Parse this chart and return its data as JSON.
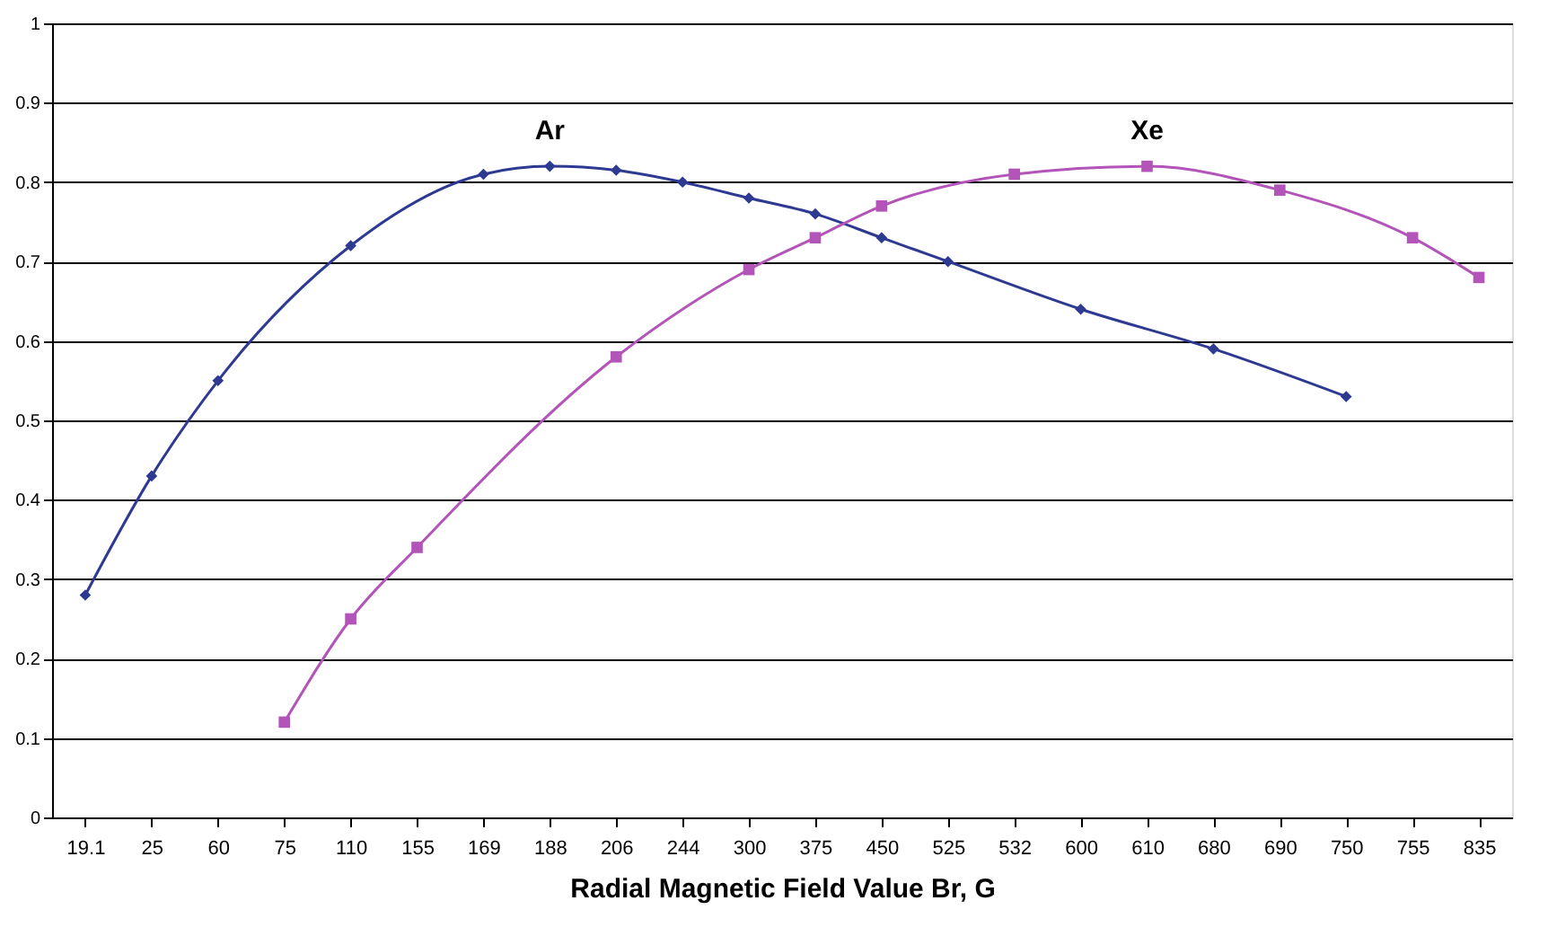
{
  "chart_data": {
    "type": "line",
    "xlabel": "Radial Magnetic Field Value Br, G",
    "categories": [
      "19.1",
      "25",
      "60",
      "75",
      "110",
      "155",
      "169",
      "188",
      "206",
      "244",
      "300",
      "375",
      "450",
      "525",
      "532",
      "600",
      "610",
      "680",
      "690",
      "750",
      "755",
      "835"
    ],
    "series": [
      {
        "name": "Ar",
        "color": "#2e3a92",
        "marker": "diamond",
        "values": [
          0.28,
          0.43,
          0.55,
          null,
          0.72,
          null,
          0.81,
          0.82,
          0.815,
          0.8,
          0.78,
          0.76,
          0.73,
          0.7,
          null,
          0.64,
          null,
          0.59,
          null,
          0.53,
          null,
          null
        ]
      },
      {
        "name": "Xe",
        "color": "#b254b8",
        "marker": "square",
        "values": [
          null,
          null,
          null,
          0.12,
          0.25,
          0.34,
          null,
          null,
          0.58,
          null,
          0.69,
          0.73,
          0.77,
          null,
          0.81,
          null,
          0.82,
          null,
          0.79,
          null,
          0.73,
          0.68
        ]
      }
    ],
    "ylim": [
      0,
      1
    ],
    "yticks": [
      0,
      0.1,
      0.2,
      0.3,
      0.4,
      0.5,
      0.6,
      0.7,
      0.8,
      0.9,
      1
    ],
    "grid": "y",
    "line_style": "solid"
  }
}
